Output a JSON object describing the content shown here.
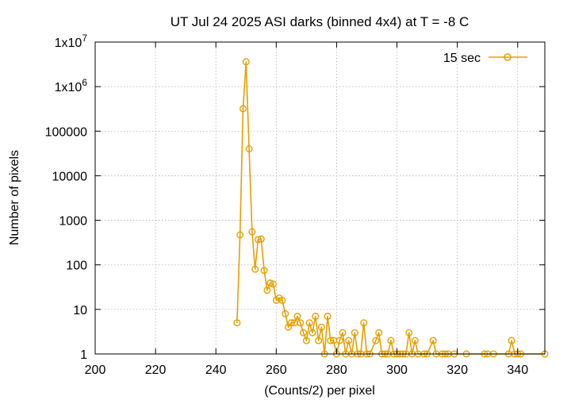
{
  "chart_data": {
    "type": "line",
    "title": "UT Jul 24 2025 ASI darks (binned 4x4) at T = -8 C",
    "xlabel": "(Counts/2) per pixel",
    "ylabel": "Number of pixels",
    "xlim": [
      200,
      349
    ],
    "ylim": [
      1,
      10000000
    ],
    "yscale": "log",
    "grid": true,
    "legend_position": "top-right",
    "x_ticks": [
      {
        "value": 200,
        "label": "200"
      },
      {
        "value": 220,
        "label": "220"
      },
      {
        "value": 240,
        "label": "240"
      },
      {
        "value": 260,
        "label": "260"
      },
      {
        "value": 280,
        "label": "280"
      },
      {
        "value": 300,
        "label": "300"
      },
      {
        "value": 320,
        "label": "320"
      },
      {
        "value": 340,
        "label": "340"
      }
    ],
    "y_ticks": [
      {
        "value": 1,
        "label": "1"
      },
      {
        "value": 10,
        "label": "10"
      },
      {
        "value": 100,
        "label": "100"
      },
      {
        "value": 1000,
        "label": "1000"
      },
      {
        "value": 10000,
        "label": "10000"
      },
      {
        "value": 100000,
        "label": "100000"
      },
      {
        "value": 1000000,
        "label": "1x10",
        "exp": "6"
      },
      {
        "value": 10000000,
        "label": "1x10",
        "exp": "7"
      }
    ],
    "series": [
      {
        "name": "15 sec",
        "color": "#e69f00",
        "x": [
          247,
          248,
          249,
          250,
          251,
          252,
          253,
          254,
          255,
          256,
          257,
          258,
          259,
          260,
          261,
          262,
          263,
          264,
          265,
          266,
          267,
          268,
          269,
          270,
          271,
          272,
          273,
          274,
          275,
          276,
          277,
          278,
          279,
          280,
          281,
          282,
          283,
          284,
          285,
          286,
          287,
          288,
          289,
          290,
          291,
          293,
          294,
          295,
          296,
          297,
          298,
          299,
          300,
          301,
          302,
          303,
          304,
          305,
          306,
          307,
          309,
          310,
          312,
          313,
          315,
          316,
          317,
          319,
          323,
          329,
          330,
          332,
          337,
          338,
          339,
          340,
          341,
          349
        ],
        "y": [
          5,
          470,
          320000,
          3600000,
          40000,
          550,
          80,
          370,
          380,
          75,
          27,
          39,
          37,
          16,
          18,
          16,
          8,
          4,
          5,
          5,
          7,
          5,
          3,
          2,
          5,
          3,
          7,
          2,
          4,
          1,
          7,
          2,
          2,
          1,
          2,
          3,
          1,
          2,
          1,
          3,
          1,
          1,
          5,
          1,
          1,
          2,
          3,
          1,
          1,
          1,
          2,
          1,
          1,
          1,
          1,
          1,
          3,
          1,
          2,
          1,
          1,
          1,
          2,
          1,
          1,
          1,
          1,
          1,
          1,
          1,
          1,
          1,
          1,
          2,
          1,
          1,
          1,
          1
        ]
      }
    ]
  }
}
